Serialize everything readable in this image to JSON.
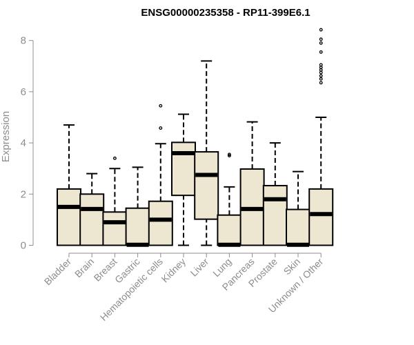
{
  "chart_data": {
    "type": "box",
    "title": "ENSG00000235358 - RP11-399E6.1",
    "ylabel": "Expression",
    "xlabel": "",
    "ylim": [
      0,
      8.6
    ],
    "yticks": [
      0,
      2,
      4,
      6,
      8
    ],
    "grid": false,
    "colors": {
      "box_fill": "#ede6d0",
      "stroke": "#000000",
      "axis": "#8c8c8c"
    },
    "categories": [
      "Bladder",
      "Brain",
      "Breast",
      "Gastric",
      "Hematopoietic cells",
      "Kidney",
      "Liver",
      "Lung",
      "Pancreas",
      "Prostate",
      "Skin",
      "Unknown / Other"
    ],
    "boxes": [
      {
        "min": 0,
        "q1": 0,
        "median": 1.5,
        "q3": 2.2,
        "max": 4.7,
        "outliers": []
      },
      {
        "min": 0,
        "q1": 0,
        "median": 1.42,
        "q3": 2.0,
        "max": 2.8,
        "outliers": []
      },
      {
        "min": 0,
        "q1": 0,
        "median": 0.9,
        "q3": 1.3,
        "max": 3.0,
        "outliers": [
          3.4
        ]
      },
      {
        "min": 0,
        "q1": 0,
        "median": 0.02,
        "q3": 1.45,
        "max": 3.05,
        "outliers": []
      },
      {
        "min": 0,
        "q1": 0,
        "median": 1.0,
        "q3": 1.72,
        "max": 3.97,
        "outliers": [
          4.58,
          5.45
        ]
      },
      {
        "min": 0,
        "q1": 1.95,
        "median": 3.6,
        "q3": 4.02,
        "max": 5.12,
        "outliers": []
      },
      {
        "min": 0,
        "q1": 1.02,
        "median": 2.75,
        "q3": 3.65,
        "max": 7.2,
        "outliers": []
      },
      {
        "min": 0,
        "q1": 0,
        "median": 0.02,
        "q3": 1.18,
        "max": 2.28,
        "outliers": [
          3.5,
          3.55
        ]
      },
      {
        "min": 0,
        "q1": 0,
        "median": 1.42,
        "q3": 2.98,
        "max": 4.82,
        "outliers": []
      },
      {
        "min": 0,
        "q1": 0,
        "median": 1.8,
        "q3": 2.33,
        "max": 4.0,
        "outliers": []
      },
      {
        "min": 0,
        "q1": 0,
        "median": 0.02,
        "q3": 1.4,
        "max": 2.88,
        "outliers": []
      },
      {
        "min": 0,
        "q1": 0,
        "median": 1.22,
        "q3": 2.2,
        "max": 5.0,
        "outliers": [
          6.35,
          6.5,
          6.62,
          6.75,
          6.85,
          6.95,
          7.05,
          7.55,
          7.9,
          8.05,
          8.42
        ]
      }
    ]
  }
}
